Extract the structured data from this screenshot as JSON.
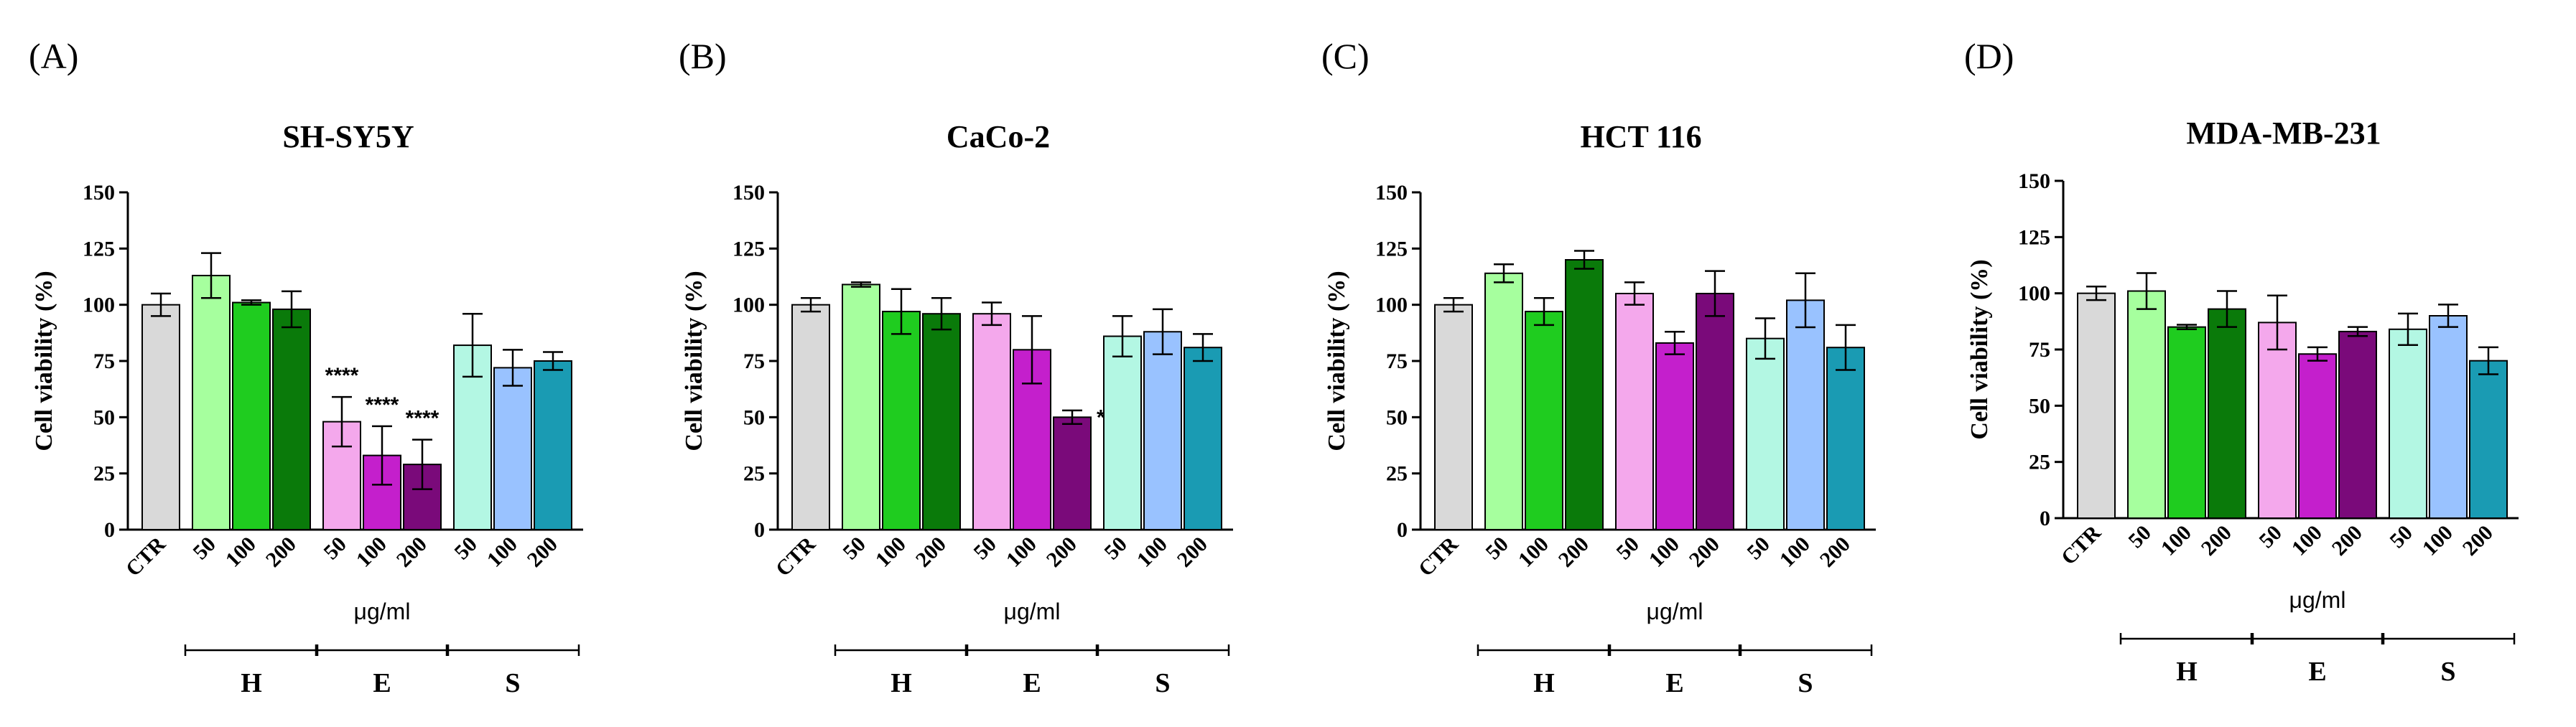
{
  "chart_data": [
    {
      "type": "bar",
      "panel": "(A)",
      "title": "SH-SY5Y",
      "ylabel": "Cell viability (%)",
      "xlabel": "μg/ml",
      "ylim": [
        0,
        150
      ],
      "yticks": [
        "0",
        "25",
        "50",
        "75",
        "100",
        "125",
        "150"
      ],
      "categories": [
        "CTR",
        "50",
        "100",
        "200",
        "50",
        "100",
        "200",
        "50",
        "100",
        "200"
      ],
      "values": [
        100,
        113,
        101,
        98,
        48,
        33,
        29,
        82,
        72,
        75
      ],
      "errors": [
        5,
        10,
        1,
        8,
        11,
        13,
        11,
        14,
        8,
        4
      ],
      "colors": [
        "#d9d9d9",
        "#a6ff9e",
        "#1fcc1f",
        "#0a7a0a",
        "#f4a8ec",
        "#c41fcc",
        "#7a0a7a",
        "#b3f7e3",
        "#99c2ff",
        "#1a9bb3"
      ],
      "significance": [
        "",
        "",
        "",
        "",
        "****",
        "****",
        "****",
        "",
        "",
        ""
      ],
      "groups": [
        {
          "label": "H",
          "from": 1,
          "to": 3
        },
        {
          "label": "E",
          "from": 4,
          "to": 6
        },
        {
          "label": "S",
          "from": 7,
          "to": 9
        }
      ]
    },
    {
      "type": "bar",
      "panel": "(B)",
      "title": "CaCo-2",
      "ylabel": "Cell viability (%)",
      "xlabel": "μg/ml",
      "ylim": [
        0,
        150
      ],
      "yticks": [
        "0",
        "25",
        "50",
        "75",
        "100",
        "125",
        "150"
      ],
      "categories": [
        "CTR",
        "50",
        "100",
        "200",
        "50",
        "100",
        "200",
        "50",
        "100",
        "200"
      ],
      "values": [
        100,
        109,
        97,
        96,
        96,
        80,
        50,
        86,
        88,
        81
      ],
      "errors": [
        3,
        1,
        10,
        7,
        5,
        15,
        3,
        9,
        10,
        6
      ],
      "colors": [
        "#d9d9d9",
        "#a6ff9e",
        "#1fcc1f",
        "#0a7a0a",
        "#f4a8ec",
        "#c41fcc",
        "#7a0a7a",
        "#b3f7e3",
        "#99c2ff",
        "#1a9bb3"
      ],
      "significance": [
        "",
        "",
        "",
        "",
        "",
        "",
        "****",
        "",
        "",
        ""
      ],
      "groups": [
        {
          "label": "H",
          "from": 1,
          "to": 3
        },
        {
          "label": "E",
          "from": 4,
          "to": 6
        },
        {
          "label": "S",
          "from": 7,
          "to": 9
        }
      ]
    },
    {
      "type": "bar",
      "panel": "(C)",
      "title": "HCT 116",
      "ylabel": "Cell viability (%)",
      "xlabel": "μg/ml",
      "ylim": [
        0,
        150
      ],
      "yticks": [
        "0",
        "25",
        "50",
        "75",
        "100",
        "125",
        "150"
      ],
      "categories": [
        "CTR",
        "50",
        "100",
        "200",
        "50",
        "100",
        "200",
        "50",
        "100",
        "200"
      ],
      "values": [
        100,
        114,
        97,
        120,
        105,
        83,
        105,
        85,
        102,
        81
      ],
      "errors": [
        3,
        4,
        6,
        4,
        5,
        5,
        10,
        9,
        12,
        10
      ],
      "colors": [
        "#d9d9d9",
        "#a6ff9e",
        "#1fcc1f",
        "#0a7a0a",
        "#f4a8ec",
        "#c41fcc",
        "#7a0a7a",
        "#b3f7e3",
        "#99c2ff",
        "#1a9bb3"
      ],
      "significance": [
        "",
        "",
        "",
        "",
        "",
        "",
        "",
        "",
        "",
        ""
      ],
      "groups": [
        {
          "label": "H",
          "from": 1,
          "to": 3
        },
        {
          "label": "E",
          "from": 4,
          "to": 6
        },
        {
          "label": "S",
          "from": 7,
          "to": 9
        }
      ]
    },
    {
      "type": "bar",
      "panel": "(D)",
      "title": "MDA-MB-231",
      "ylabel": "Cell viability (%)",
      "xlabel": "μg/ml",
      "ylim": [
        0,
        150
      ],
      "yticks": [
        "0",
        "25",
        "50",
        "75",
        "100",
        "125",
        "150"
      ],
      "categories": [
        "CTR",
        "50",
        "100",
        "200",
        "50",
        "100",
        "200",
        "50",
        "100",
        "200"
      ],
      "values": [
        100,
        101,
        85,
        93,
        87,
        73,
        83,
        84,
        90,
        70
      ],
      "errors": [
        3,
        8,
        1,
        8,
        12,
        3,
        2,
        7,
        5,
        6
      ],
      "colors": [
        "#d9d9d9",
        "#a6ff9e",
        "#1fcc1f",
        "#0a7a0a",
        "#f4a8ec",
        "#c41fcc",
        "#7a0a7a",
        "#b3f7e3",
        "#99c2ff",
        "#1a9bb3"
      ],
      "significance": [
        "",
        "",
        "",
        "",
        "",
        "",
        "",
        "",
        "",
        ""
      ],
      "groups": [
        {
          "label": "H",
          "from": 1,
          "to": 3
        },
        {
          "label": "E",
          "from": 4,
          "to": 6
        },
        {
          "label": "S",
          "from": 7,
          "to": 9
        }
      ]
    }
  ]
}
